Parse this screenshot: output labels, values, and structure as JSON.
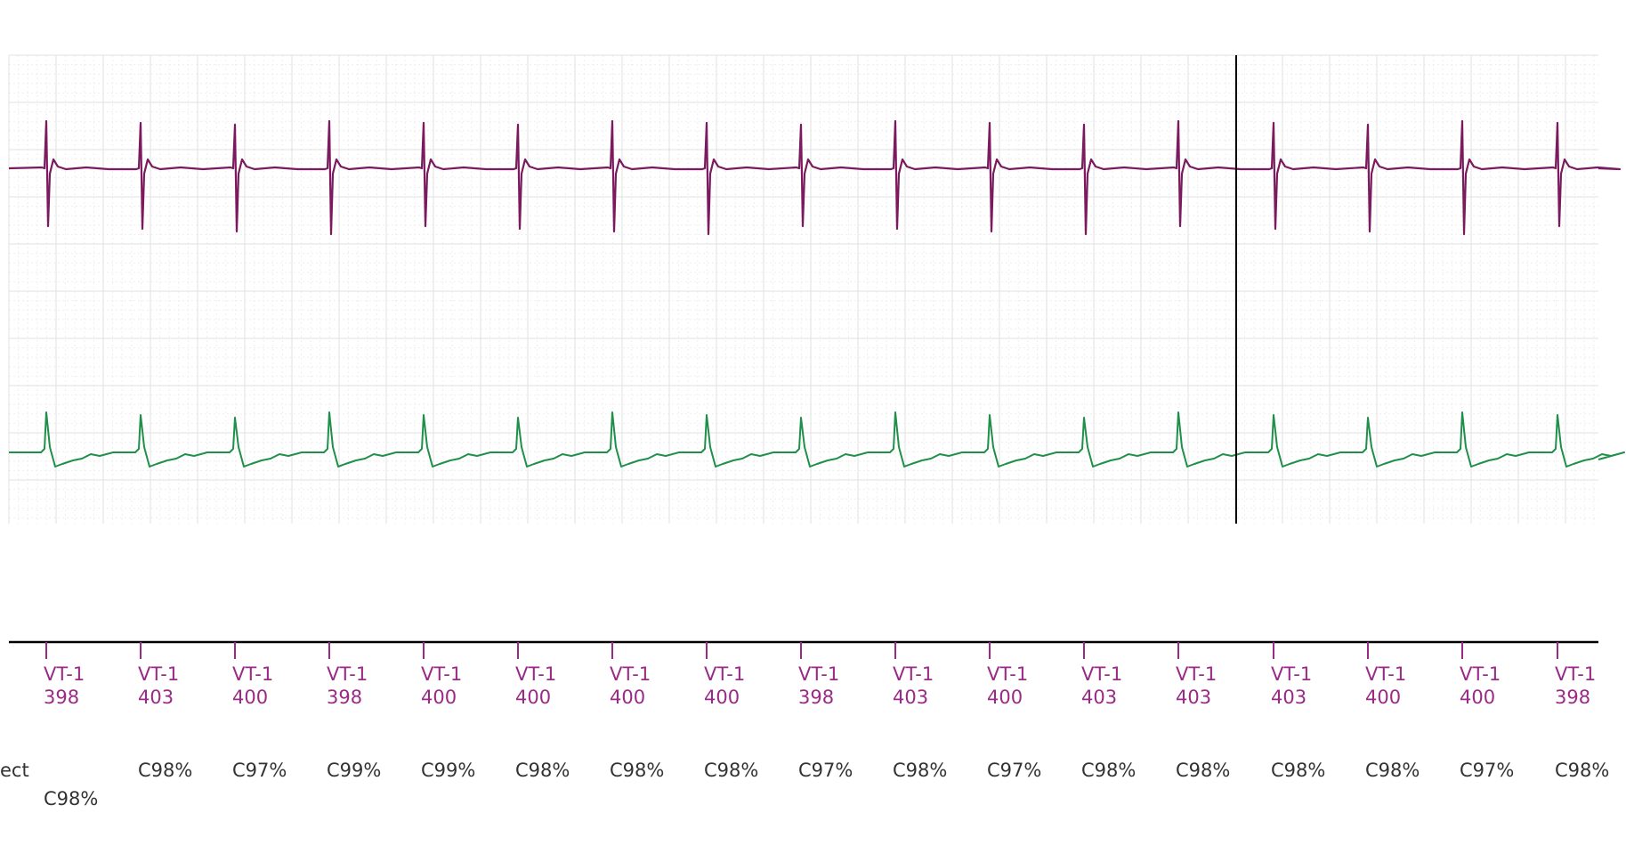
{
  "colors": {
    "channel_1": "#7b1a5e",
    "channel_2": "#1f8f4a",
    "marker_text": "#9a2a86",
    "confidence_text": "#333333",
    "grid_major": "#e2e2e2",
    "grid_minor": "#eeeeee",
    "cursor": "#000000"
  },
  "header": {
    "truncated_label": "ect",
    "first_confidence": "C98%"
  },
  "beats": [
    {
      "marker": "VT-1",
      "interval": "398",
      "confidence": ""
    },
    {
      "marker": "VT-1",
      "interval": "403",
      "confidence": "C98%"
    },
    {
      "marker": "VT-1",
      "interval": "400",
      "confidence": "C97%"
    },
    {
      "marker": "VT-1",
      "interval": "398",
      "confidence": "C99%"
    },
    {
      "marker": "VT-1",
      "interval": "400",
      "confidence": "C99%"
    },
    {
      "marker": "VT-1",
      "interval": "400",
      "confidence": "C98%"
    },
    {
      "marker": "VT-1",
      "interval": "400",
      "confidence": "C98%"
    },
    {
      "marker": "VT-1",
      "interval": "400",
      "confidence": "C98%"
    },
    {
      "marker": "VT-1",
      "interval": "398",
      "confidence": "C97%"
    },
    {
      "marker": "VT-1",
      "interval": "403",
      "confidence": "C98%"
    },
    {
      "marker": "VT-1",
      "interval": "400",
      "confidence": "C97%"
    },
    {
      "marker": "VT-1",
      "interval": "403",
      "confidence": "C98%"
    },
    {
      "marker": "VT-1",
      "interval": "403",
      "confidence": "C98%"
    },
    {
      "marker": "VT-1",
      "interval": "403",
      "confidence": "C98%"
    },
    {
      "marker": "VT-1",
      "interval": "400",
      "confidence": "C98%"
    },
    {
      "marker": "VT-1",
      "interval": "400",
      "confidence": "C97%"
    },
    {
      "marker": "VT-1",
      "interval": "398",
      "confidence": "C98%"
    }
  ],
  "icons": {
    "cursor": "vertical-cursor-line"
  }
}
